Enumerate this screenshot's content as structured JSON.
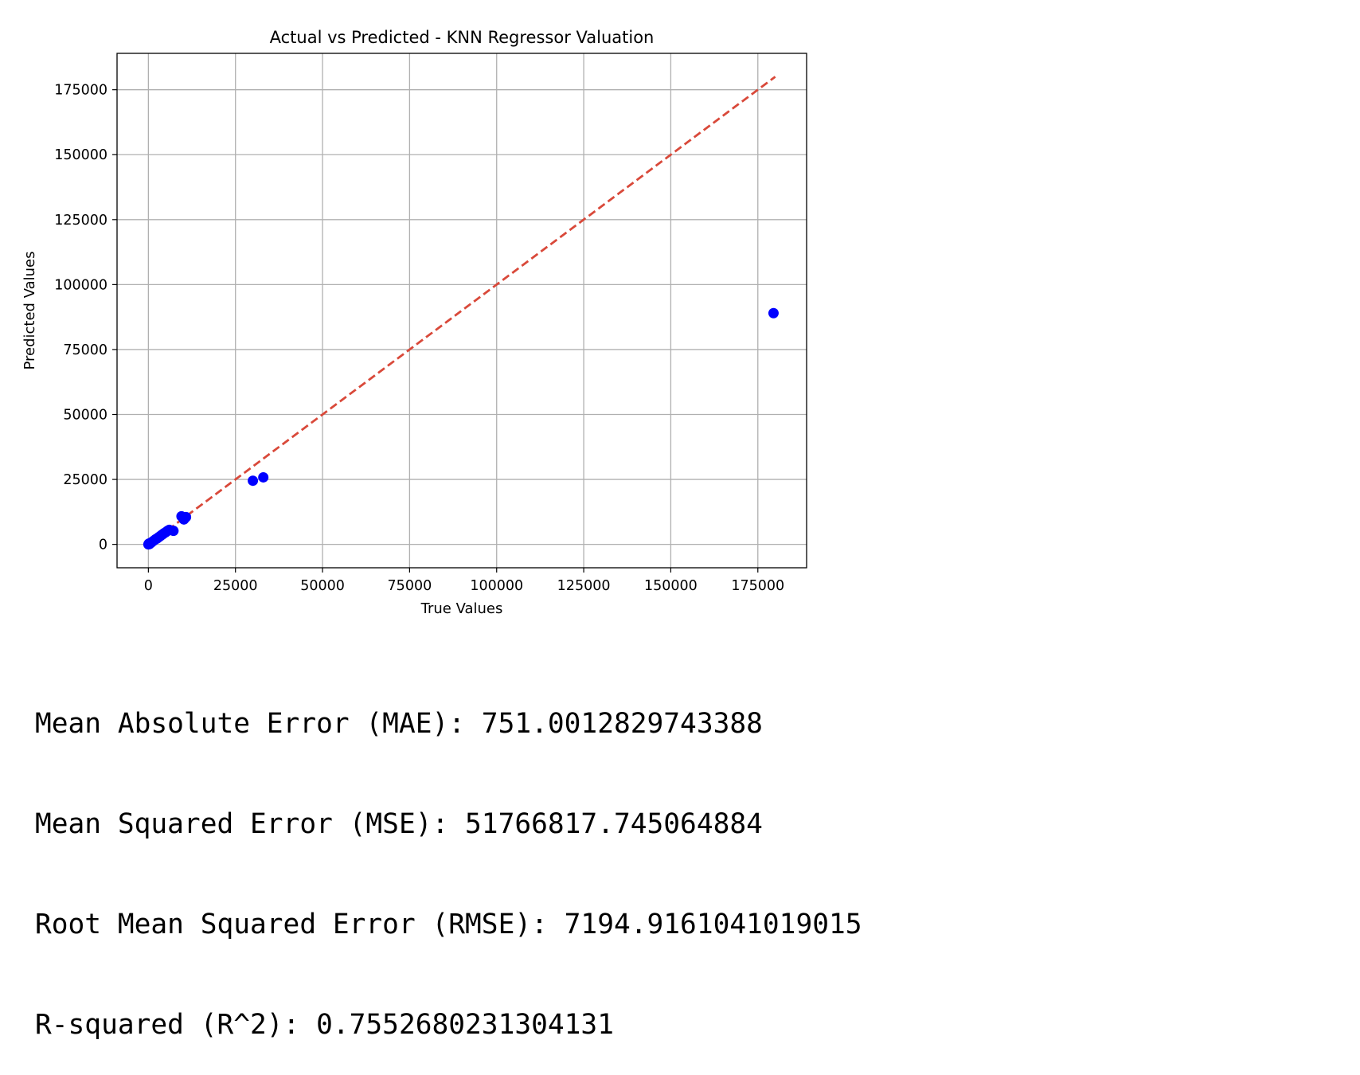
{
  "chart_data": {
    "type": "scatter",
    "title": "Actual vs Predicted - KNN Regressor Valuation",
    "xlabel": "True Values",
    "ylabel": "Predicted Values",
    "xlim": [
      -9000,
      189000
    ],
    "ylim": [
      -9000,
      189000
    ],
    "xticks": [
      0,
      25000,
      50000,
      75000,
      100000,
      125000,
      150000,
      175000
    ],
    "yticks": [
      0,
      25000,
      50000,
      75000,
      100000,
      125000,
      150000,
      175000
    ],
    "grid": true,
    "points": [
      [
        0,
        0
      ],
      [
        150,
        300
      ],
      [
        300,
        100
      ],
      [
        500,
        400
      ],
      [
        800,
        700
      ],
      [
        1000,
        900
      ],
      [
        1500,
        1400
      ],
      [
        2000,
        1900
      ],
      [
        2500,
        2300
      ],
      [
        3000,
        2800
      ],
      [
        3500,
        3300
      ],
      [
        4000,
        3800
      ],
      [
        4500,
        4300
      ],
      [
        5000,
        4700
      ],
      [
        5500,
        5200
      ],
      [
        6000,
        5600
      ],
      [
        7200,
        5200
      ],
      [
        9500,
        10800
      ],
      [
        10200,
        9600
      ],
      [
        10800,
        10500
      ],
      [
        30000,
        24500
      ],
      [
        33000,
        25800
      ],
      [
        179500,
        89000
      ]
    ],
    "reference_line": {
      "from": [
        0,
        0
      ],
      "to": [
        180000,
        180000
      ]
    },
    "colors": {
      "points": "#0000ff",
      "reference_line": "#d9493a",
      "grid": "#b0b0b0",
      "axes": "#000000"
    }
  },
  "metrics": {
    "mae": "Mean Absolute Error (MAE): 751.0012829743388",
    "mse": "Mean Squared Error (MSE): 51766817.745064884",
    "rmse": "Root Mean Squared Error (RMSE): 7194.9161041019015",
    "r2": "R-squared (R^2): 0.7552680231304131"
  }
}
